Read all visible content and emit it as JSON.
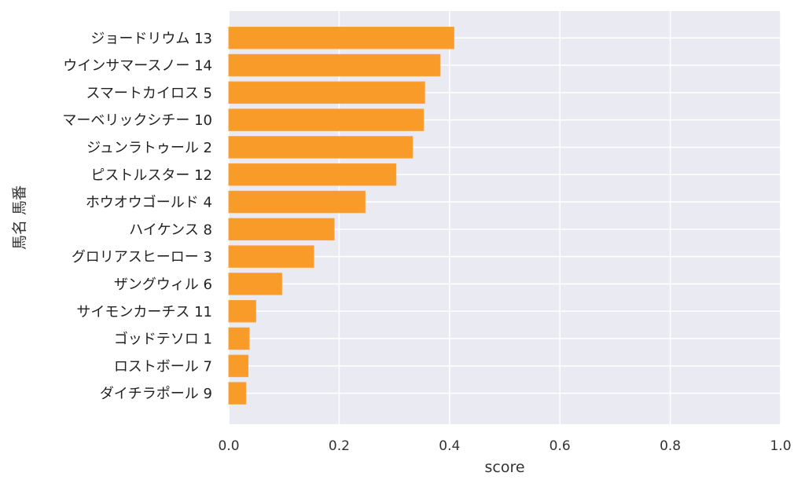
{
  "chart_data": {
    "type": "bar",
    "orientation": "horizontal",
    "categories": [
      "ジョードリウム 13",
      "ウインサマースノー 14",
      "スマートカイロス 5",
      "マーベリックシチー 10",
      "ジュンラトゥール 2",
      "ピストルスター 12",
      "ホウオウゴールド 4",
      "ハイケンス 8",
      "グロリアスヒーロー 3",
      "ザングウィル 6",
      "サイモンカーチス 11",
      "ゴッドテソロ 1",
      "ロストボール 7",
      "ダイチラポール 9"
    ],
    "values": [
      0.408,
      0.383,
      0.355,
      0.353,
      0.333,
      0.303,
      0.247,
      0.191,
      0.154,
      0.096,
      0.049,
      0.037,
      0.035,
      0.031
    ],
    "xlabel": "score",
    "ylabel": "馬名 馬番",
    "xlim": [
      0,
      1.0
    ],
    "xticks": [
      "0.0",
      "0.2",
      "0.4",
      "0.6",
      "0.8",
      "1.0"
    ],
    "grid": true,
    "colors": {
      "bar": "#F99B28",
      "bar_edge": "#F5A341",
      "plot_background": "#EAEAF2",
      "grid": "#FFFFFF"
    }
  }
}
